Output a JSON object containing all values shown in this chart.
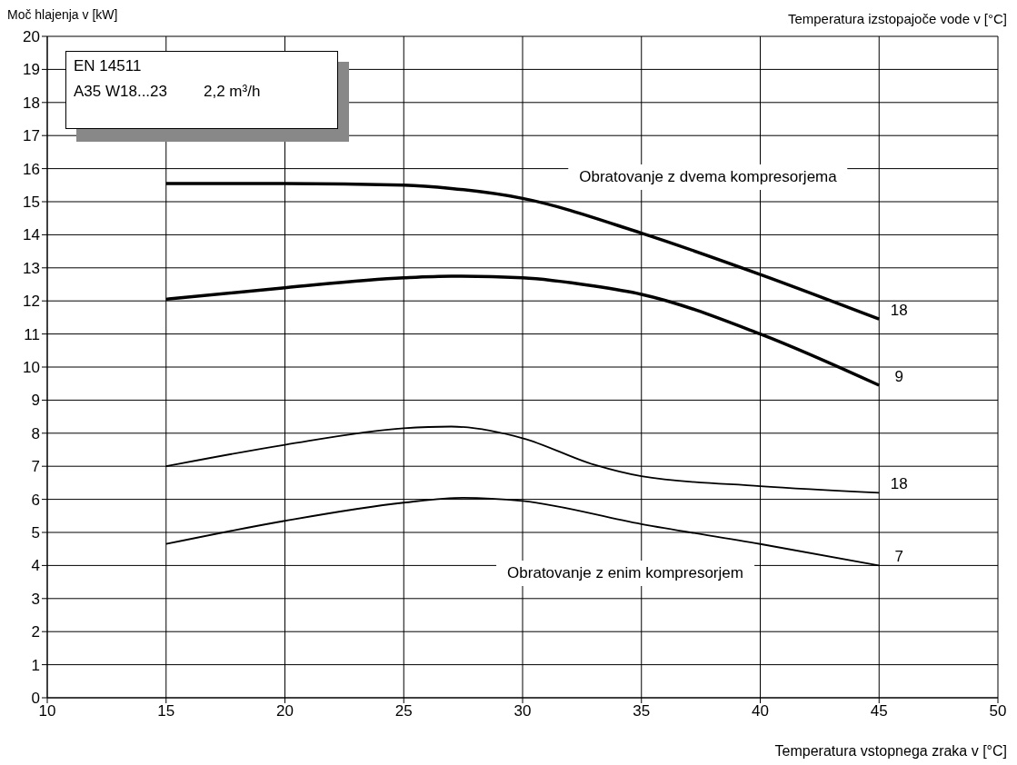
{
  "chart_data": {
    "type": "line",
    "ylabel": "Moč hlajenja v [kW]",
    "xlabel": "Temperatura vstopnega zraka v [°C]",
    "legend_title": "Temperatura izstopajoče vode v [°C]",
    "xlim": [
      10,
      50
    ],
    "xticks": [
      10,
      15,
      20,
      25,
      30,
      35,
      40,
      45,
      50
    ],
    "ylim": [
      0,
      20
    ],
    "yticks": [
      0,
      1,
      2,
      3,
      4,
      5,
      6,
      7,
      8,
      9,
      10,
      11,
      12,
      13,
      14,
      15,
      16,
      17,
      18,
      19,
      20
    ],
    "grid": true,
    "marker": "none",
    "line_style": "solid",
    "series": [
      {
        "name": "18",
        "color": "#000000",
        "x": [
          15,
          20,
          25,
          27,
          30,
          35,
          40,
          45
        ],
        "values": [
          15.55,
          15.55,
          15.5,
          15.4,
          15.1,
          14.05,
          12.8,
          11.45
        ]
      },
      {
        "name": "9",
        "color": "#000000",
        "x": [
          15,
          20,
          25,
          27,
          30,
          33,
          35,
          40,
          45
        ],
        "values": [
          12.05,
          12.4,
          12.7,
          12.75,
          12.7,
          12.45,
          12.2,
          11.0,
          9.45
        ]
      },
      {
        "name": "18",
        "color": "#000000",
        "x": [
          15,
          20,
          25,
          27,
          30,
          33,
          35,
          40,
          45
        ],
        "values": [
          7.0,
          7.65,
          8.15,
          8.2,
          7.85,
          7.05,
          6.7,
          6.4,
          6.2
        ]
      },
      {
        "name": "7",
        "color": "#000000",
        "x": [
          15,
          20,
          25,
          27.5,
          30,
          35,
          40,
          45
        ],
        "values": [
          4.65,
          5.35,
          5.9,
          6.05,
          5.95,
          5.25,
          4.65,
          4.0
        ]
      }
    ],
    "annotations": [
      "EN 14511",
      "A35 W18...23",
      "2,2 m³/h",
      "Obratovanje z dvema kompresorjema",
      "Obratovanje z enim kompresorjem"
    ]
  }
}
